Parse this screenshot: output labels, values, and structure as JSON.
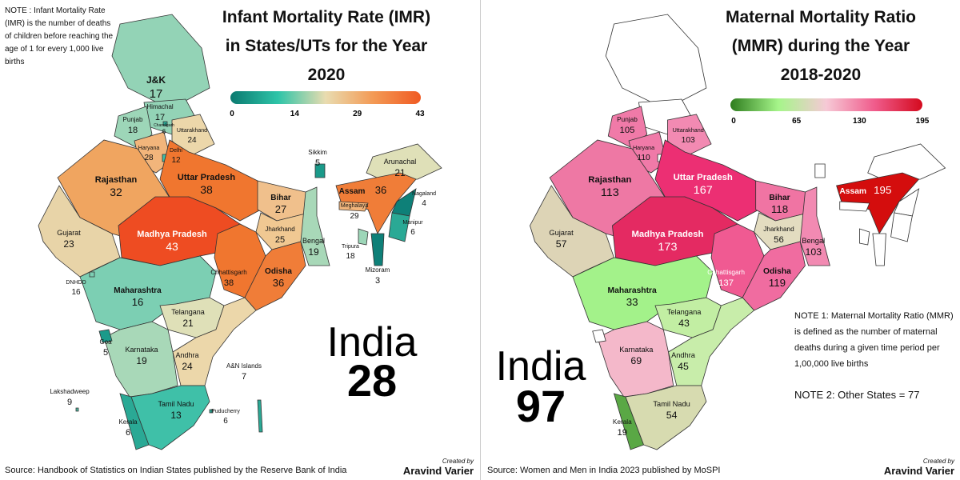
{
  "left": {
    "title": "Infant Mortality Rate (IMR) in States/UTs for the Year 2020",
    "note": "NOTE : Infant Mortality Rate (IMR) is the number of deaths of children before reaching the age of 1 for every 1,000 live births",
    "legend": {
      "ticks": [
        "0",
        "14",
        "29",
        "43"
      ],
      "colors": [
        "#0b7a70",
        "#2ec4a8",
        "#e9dcb0",
        "#f39a55",
        "#f05a22"
      ]
    },
    "national_label": "India",
    "national_value": "28",
    "source": "Source: Handbook of Statistics on Indian States published by the Reserve Bank of India",
    "credit_line1": "Created by",
    "credit_line2": "Aravind Varier",
    "states": [
      {
        "name": "J&K",
        "value": "17",
        "color": "#93d3b6"
      },
      {
        "name": "Himachal",
        "value": "17",
        "color": "#93d3b6"
      },
      {
        "name": "Chandigarh",
        "value": "6",
        "color": "#2aa995"
      },
      {
        "name": "Punjab",
        "value": "18",
        "color": "#9dd6b8"
      },
      {
        "name": "Uttarakhand",
        "value": "24",
        "color": "#ecd7aa"
      },
      {
        "name": "Haryana",
        "value": "28",
        "color": "#f2b57b"
      },
      {
        "name": "Delhi",
        "value": "12",
        "color": "#3fbfa8"
      },
      {
        "name": "Rajasthan",
        "value": "32",
        "color": "#f0a560"
      },
      {
        "name": "Uttar Pradesh",
        "value": "38",
        "color": "#f0762f"
      },
      {
        "name": "Madhya Pradesh",
        "value": "43",
        "color": "#ee4c22"
      },
      {
        "name": "Gujarat",
        "value": "23",
        "color": "#e8d4a8"
      },
      {
        "name": "Bihar",
        "value": "27",
        "color": "#f0c08c"
      },
      {
        "name": "Jharkhand",
        "value": "25",
        "color": "#f0c892"
      },
      {
        "name": "Bengal",
        "value": "19",
        "color": "#a8d8b8"
      },
      {
        "name": "Chhattisgarh",
        "value": "38",
        "color": "#f0762f"
      },
      {
        "name": "Odisha",
        "value": "36",
        "color": "#f07d38"
      },
      {
        "name": "Maharashtra",
        "value": "16",
        "color": "#7ccfb3"
      },
      {
        "name": "Telangana",
        "value": "21",
        "color": "#dfe0b8"
      },
      {
        "name": "Andhra",
        "value": "24",
        "color": "#ecd7aa"
      },
      {
        "name": "Karnataka",
        "value": "19",
        "color": "#a8d8b8"
      },
      {
        "name": "Goa",
        "value": "5",
        "color": "#1a9a8a"
      },
      {
        "name": "Kerala",
        "value": "6",
        "color": "#2aa995"
      },
      {
        "name": "Tamil Nadu",
        "value": "13",
        "color": "#3fc0a8"
      },
      {
        "name": "Sikkim",
        "value": "5",
        "color": "#1a9a8a"
      },
      {
        "name": "Arunachal",
        "value": "21",
        "color": "#dfe0b8"
      },
      {
        "name": "Assam",
        "value": "36",
        "color": "#f07d38"
      },
      {
        "name": "Meghalaya",
        "value": "29",
        "color": "#f2b57b"
      },
      {
        "name": "Nagaland",
        "value": "4",
        "color": "#0e8078"
      },
      {
        "name": "Manipur",
        "value": "6",
        "color": "#2aa995"
      },
      {
        "name": "Mizoram",
        "value": "3",
        "color": "#0e8078"
      },
      {
        "name": "Tripura",
        "value": "18",
        "color": "#9dd6b8"
      },
      {
        "name": "DNHDD",
        "value": "16",
        "color": "#7ccfb3"
      },
      {
        "name": "A&N Islands",
        "value": "7",
        "color": "#2aa995"
      },
      {
        "name": "Lakshadweep",
        "value": "9",
        "color": "#4dbba2"
      },
      {
        "name": "Puducherry",
        "value": "6",
        "color": "#2aa995"
      }
    ]
  },
  "right": {
    "title": "Maternal Mortality Ratio (MMR) during the Year 2018-2020",
    "legend": {
      "ticks": [
        "0",
        "65",
        "130",
        "195"
      ],
      "colors": [
        "#2e7d1e",
        "#a6f58a",
        "#f6c9d6",
        "#f05c8c",
        "#d40a1e"
      ]
    },
    "note1": "NOTE 1: Maternal Mortality Ratio (MMR) is defined as the number of maternal deaths during a given time period per 1,00,000 live births",
    "note2": "NOTE 2: Other States = 77",
    "national_label": "India",
    "national_value": "97",
    "source": "Source: Women and Men in India 2023 published by MoSPI",
    "credit_line1": "Created by",
    "credit_line2": "Aravind Varier",
    "states": [
      {
        "name": "Punjab",
        "value": "105",
        "color": "#f07aa8"
      },
      {
        "name": "Uttarakhand",
        "value": "103",
        "color": "#f28ab2"
      },
      {
        "name": "Haryana",
        "value": "110",
        "color": "#f07aa8"
      },
      {
        "name": "Rajasthan",
        "value": "113",
        "color": "#ee78a4"
      },
      {
        "name": "Uttar Pradesh",
        "value": "167",
        "color": "#ec2f73"
      },
      {
        "name": "Madhya Pradesh",
        "value": "173",
        "color": "#e42a62"
      },
      {
        "name": "Bihar",
        "value": "118",
        "color": "#f074a3"
      },
      {
        "name": "Jharkhand",
        "value": "56",
        "color": "#e3dcc0"
      },
      {
        "name": "Bengal",
        "value": "103",
        "color": "#f28ab2"
      },
      {
        "name": "Chhattisgarh",
        "value": "137",
        "color": "#f05a92"
      },
      {
        "name": "Odisha",
        "value": "119",
        "color": "#f06ca0"
      },
      {
        "name": "Gujarat",
        "value": "57",
        "color": "#ddd4b6"
      },
      {
        "name": "Maharashtra",
        "value": "33",
        "color": "#a3f28a"
      },
      {
        "name": "Telangana",
        "value": "43",
        "color": "#c2eea3"
      },
      {
        "name": "Andhra",
        "value": "45",
        "color": "#c8edaa"
      },
      {
        "name": "Karnataka",
        "value": "69",
        "color": "#f4b8ca"
      },
      {
        "name": "Kerala",
        "value": "19",
        "color": "#5aa845"
      },
      {
        "name": "Tamil Nadu",
        "value": "54",
        "color": "#d7dbb0"
      },
      {
        "name": "Assam",
        "value": "195",
        "color": "#d40d0d"
      }
    ]
  }
}
